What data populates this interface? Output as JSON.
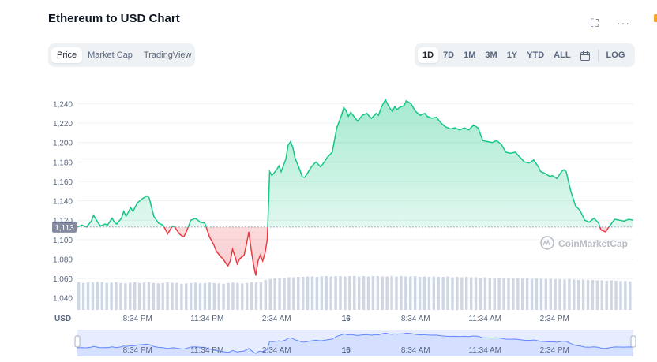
{
  "header": {
    "title": "Ethereum to USD Chart",
    "fullscreen_icon": "fullscreen-icon",
    "more_icon": "more-dots-icon",
    "fullscreen_glyph": "⛶",
    "more_glyph": "···"
  },
  "chart_tabs": [
    {
      "label": "Price",
      "active": true
    },
    {
      "label": "Market Cap",
      "active": false
    },
    {
      "label": "TradingView",
      "active": false
    }
  ],
  "range_tabs": [
    {
      "label": "1D",
      "active": true
    },
    {
      "label": "7D",
      "active": false
    },
    {
      "label": "1M",
      "active": false
    },
    {
      "label": "3M",
      "active": false
    },
    {
      "label": "1Y",
      "active": false
    },
    {
      "label": "YTD",
      "active": false
    },
    {
      "label": "ALL",
      "active": false
    }
  ],
  "calendar_icon": "calendar-icon",
  "log_label": "LOG",
  "watermark": "CoinMarketCap",
  "colors": {
    "up": "#16c784",
    "down": "#ea3943",
    "volume": "#cfd6e4",
    "nav_line": "#6188ff",
    "nav_bg": "#e7edff"
  },
  "chart_data": {
    "type": "area",
    "currency_label": "USD",
    "baseline": 1113,
    "baseline_label": "1,113",
    "ylim": [
      1030,
      1255
    ],
    "y_ticks": [
      1040,
      1060,
      1080,
      1100,
      1120,
      1140,
      1160,
      1180,
      1200,
      1220,
      1240
    ],
    "y_tick_labels": [
      "1,040",
      "1,060",
      "1,080",
      "1,100",
      "1,120",
      "1,140",
      "1,160",
      "1,180",
      "1,200",
      "1,220",
      "1,240"
    ],
    "x_ticks": [
      5.5,
      8.5,
      11.5,
      14.5,
      17.5,
      20.5,
      23.5
    ],
    "x_tick_labels": [
      "8:34 PM",
      "11:34 PM",
      "2:34 AM",
      "16",
      "8:34 AM",
      "11:34 AM",
      "2:34 PM"
    ],
    "x_range": [
      2.9,
      26.9
    ],
    "grid": true,
    "price_series": [
      [
        2.9,
        1113
      ],
      [
        3.1,
        1115
      ],
      [
        3.3,
        1113
      ],
      [
        3.5,
        1119
      ],
      [
        3.6,
        1125
      ],
      [
        3.8,
        1117
      ],
      [
        3.9,
        1114
      ],
      [
        4.1,
        1116
      ],
      [
        4.2,
        1115
      ],
      [
        4.4,
        1122
      ],
      [
        4.5,
        1118
      ],
      [
        4.6,
        1116
      ],
      [
        4.8,
        1122
      ],
      [
        4.9,
        1129
      ],
      [
        5.0,
        1124
      ],
      [
        5.2,
        1133
      ],
      [
        5.3,
        1129
      ],
      [
        5.4,
        1134
      ],
      [
        5.5,
        1138
      ],
      [
        5.7,
        1142
      ],
      [
        5.9,
        1145
      ],
      [
        6.0,
        1143
      ],
      [
        6.2,
        1124
      ],
      [
        6.4,
        1117
      ],
      [
        6.6,
        1115
      ],
      [
        6.8,
        1106
      ],
      [
        7.0,
        1114
      ],
      [
        7.1,
        1113
      ],
      [
        7.3,
        1106
      ],
      [
        7.4,
        1104
      ],
      [
        7.5,
        1103
      ],
      [
        7.6,
        1108
      ],
      [
        7.8,
        1120
      ],
      [
        8.0,
        1122
      ],
      [
        8.2,
        1118
      ],
      [
        8.4,
        1117
      ],
      [
        8.6,
        1103
      ],
      [
        8.8,
        1094
      ],
      [
        8.9,
        1088
      ],
      [
        9.1,
        1082
      ],
      [
        9.2,
        1080
      ],
      [
        9.3,
        1076
      ],
      [
        9.4,
        1073
      ],
      [
        9.5,
        1078
      ],
      [
        9.6,
        1090
      ],
      [
        9.7,
        1083
      ],
      [
        9.8,
        1075
      ],
      [
        9.9,
        1080
      ],
      [
        10.1,
        1084
      ],
      [
        10.2,
        1095
      ],
      [
        10.3,
        1108
      ],
      [
        10.4,
        1090
      ],
      [
        10.5,
        1075
      ],
      [
        10.6,
        1063
      ],
      [
        10.7,
        1078
      ],
      [
        10.8,
        1084
      ],
      [
        10.9,
        1078
      ],
      [
        11.0,
        1086
      ],
      [
        11.1,
        1100
      ],
      [
        11.2,
        1170
      ],
      [
        11.3,
        1166
      ],
      [
        11.5,
        1172
      ],
      [
        11.6,
        1176
      ],
      [
        11.7,
        1170
      ],
      [
        11.9,
        1183
      ],
      [
        12.0,
        1197
      ],
      [
        12.1,
        1201
      ],
      [
        12.2,
        1195
      ],
      [
        12.3,
        1184
      ],
      [
        12.4,
        1178
      ],
      [
        12.5,
        1172
      ],
      [
        12.6,
        1165
      ],
      [
        12.7,
        1164
      ],
      [
        12.8,
        1167
      ],
      [
        13.0,
        1175
      ],
      [
        13.2,
        1180
      ],
      [
        13.4,
        1175
      ],
      [
        13.5,
        1178
      ],
      [
        13.7,
        1185
      ],
      [
        13.9,
        1190
      ],
      [
        14.1,
        1215
      ],
      [
        14.3,
        1228
      ],
      [
        14.4,
        1236
      ],
      [
        14.5,
        1233
      ],
      [
        14.6,
        1227
      ],
      [
        14.7,
        1231
      ],
      [
        14.9,
        1225
      ],
      [
        15.0,
        1222
      ],
      [
        15.2,
        1228
      ],
      [
        15.4,
        1230
      ],
      [
        15.5,
        1227
      ],
      [
        15.6,
        1225
      ],
      [
        15.8,
        1230
      ],
      [
        15.9,
        1228
      ],
      [
        16.0,
        1235
      ],
      [
        16.1,
        1240
      ],
      [
        16.2,
        1244
      ],
      [
        16.3,
        1239
      ],
      [
        16.4,
        1235
      ],
      [
        16.5,
        1232
      ],
      [
        16.6,
        1237
      ],
      [
        16.7,
        1234
      ],
      [
        16.8,
        1236
      ],
      [
        17.0,
        1238
      ],
      [
        17.1,
        1243
      ],
      [
        17.3,
        1240
      ],
      [
        17.5,
        1232
      ],
      [
        17.7,
        1228
      ],
      [
        17.9,
        1230
      ],
      [
        18.0,
        1227
      ],
      [
        18.2,
        1225
      ],
      [
        18.4,
        1226
      ],
      [
        18.6,
        1220
      ],
      [
        18.8,
        1216
      ],
      [
        19.0,
        1214
      ],
      [
        19.2,
        1215
      ],
      [
        19.4,
        1213
      ],
      [
        19.6,
        1215
      ],
      [
        19.8,
        1213
      ],
      [
        20.0,
        1218
      ],
      [
        20.2,
        1215
      ],
      [
        20.4,
        1202
      ],
      [
        20.6,
        1201
      ],
      [
        20.8,
        1200
      ],
      [
        21.0,
        1202
      ],
      [
        21.2,
        1198
      ],
      [
        21.4,
        1190
      ],
      [
        21.6,
        1189
      ],
      [
        21.8,
        1190
      ],
      [
        22.0,
        1185
      ],
      [
        22.2,
        1180
      ],
      [
        22.4,
        1179
      ],
      [
        22.6,
        1182
      ],
      [
        22.8,
        1175
      ],
      [
        22.9,
        1170
      ],
      [
        23.1,
        1168
      ],
      [
        23.3,
        1165
      ],
      [
        23.4,
        1166
      ],
      [
        23.6,
        1163
      ],
      [
        23.8,
        1170
      ],
      [
        23.9,
        1172
      ],
      [
        24.0,
        1170
      ],
      [
        24.2,
        1150
      ],
      [
        24.4,
        1135
      ],
      [
        24.6,
        1130
      ],
      [
        24.8,
        1120
      ],
      [
        25.0,
        1118
      ],
      [
        25.2,
        1122
      ],
      [
        25.4,
        1117
      ],
      [
        25.5,
        1110
      ],
      [
        25.7,
        1108
      ],
      [
        25.9,
        1115
      ],
      [
        26.1,
        1121
      ],
      [
        26.3,
        1120
      ],
      [
        26.5,
        1119
      ],
      [
        26.7,
        1121
      ],
      [
        26.9,
        1120
      ]
    ],
    "volume_series": [
      0.72,
      0.7,
      0.72,
      0.71,
      0.73,
      0.72,
      0.7,
      0.71,
      0.72,
      0.7,
      0.69,
      0.71,
      0.72,
      0.7,
      0.71,
      0.72,
      0.7,
      0.69,
      0.7,
      0.72,
      0.71,
      0.7,
      0.68,
      0.69,
      0.7,
      0.71,
      0.69,
      0.7,
      0.71,
      0.7,
      0.69,
      0.68,
      0.7,
      0.71,
      0.7,
      0.69,
      0.7,
      0.72,
      0.71,
      0.72,
      0.78,
      0.8,
      0.82,
      0.83,
      0.84,
      0.85,
      0.85,
      0.86,
      0.86,
      0.87,
      0.87,
      0.86,
      0.87,
      0.88,
      0.87,
      0.88,
      0.88,
      0.87,
      0.88,
      0.88,
      0.87,
      0.88,
      0.87,
      0.88,
      0.88,
      0.87,
      0.87,
      0.88,
      0.87,
      0.88,
      0.87,
      0.87,
      0.88,
      0.86,
      0.87,
      0.86,
      0.87,
      0.86,
      0.86,
      0.87,
      0.85,
      0.86,
      0.85,
      0.86,
      0.85,
      0.85,
      0.84,
      0.85,
      0.84,
      0.83,
      0.84,
      0.83,
      0.83,
      0.82,
      0.83,
      0.82,
      0.82,
      0.81,
      0.82,
      0.81,
      0.8,
      0.81,
      0.8,
      0.8,
      0.79,
      0.8,
      0.79,
      0.78,
      0.79,
      0.78,
      0.78,
      0.77,
      0.77,
      0.76,
      0.77,
      0.76,
      0.75,
      0.75,
      0.74
    ]
  }
}
